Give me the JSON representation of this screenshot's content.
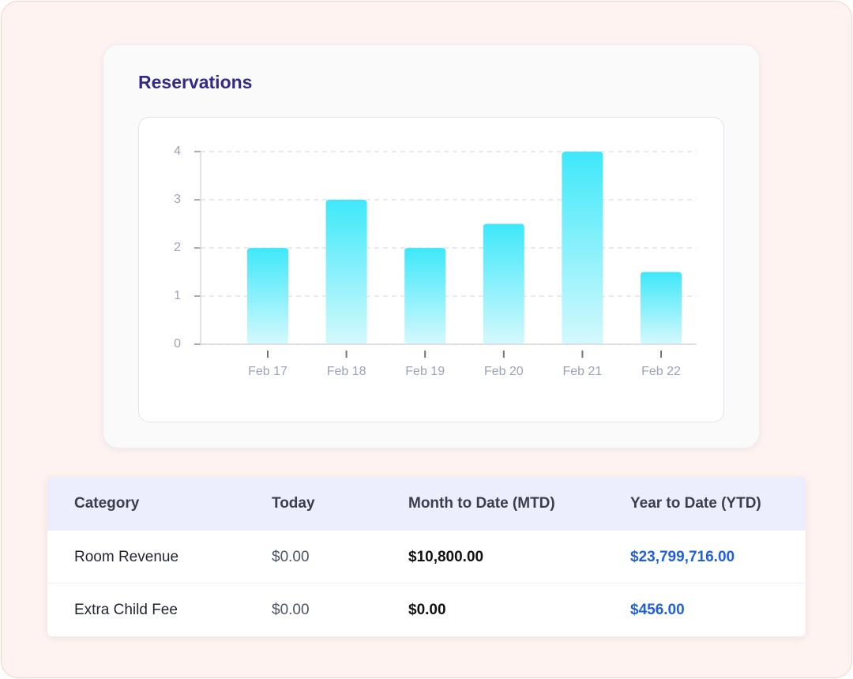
{
  "chart_data": {
    "type": "bar",
    "title": "Reservations",
    "categories": [
      "Feb 17",
      "Feb 18",
      "Feb 19",
      "Feb 20",
      "Feb 21",
      "Feb 22"
    ],
    "values": [
      2,
      3,
      2,
      2.5,
      4,
      1.5
    ],
    "color": "#3ee8fa",
    "ylim": [
      0,
      4
    ],
    "yticks": [
      0,
      1,
      2,
      3,
      4
    ],
    "grid": true
  },
  "table": {
    "header": [
      "Category",
      "Today",
      "Month to Date (MTD)",
      "Year to Date (YTD)"
    ],
    "rows": [
      [
        "Room Revenue",
        "$0.00",
        "$10,800.00",
        "$23,799,716.00"
      ],
      [
        "Extra Child Fee",
        "$0.00",
        "$0.00",
        "$456.00"
      ]
    ]
  }
}
